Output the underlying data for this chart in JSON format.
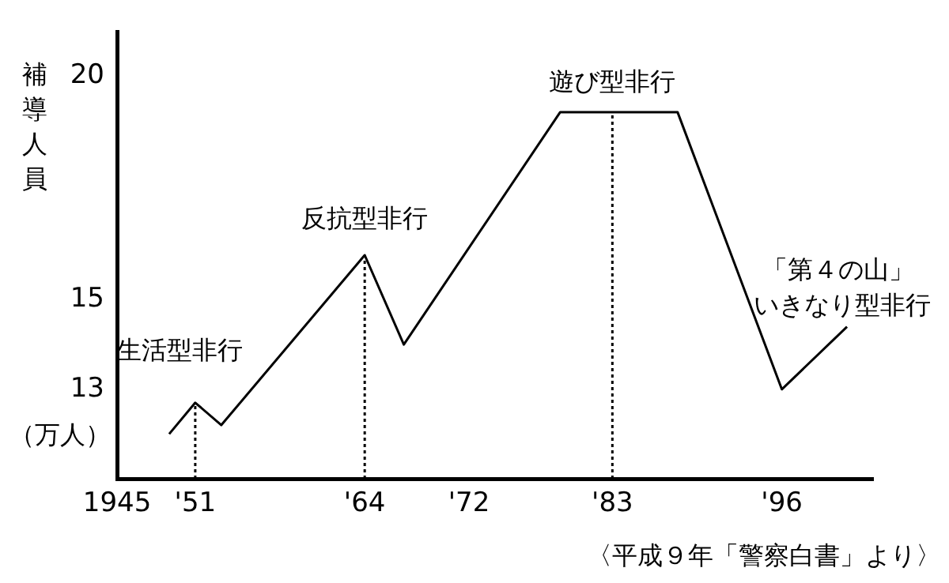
{
  "chart_data": {
    "type": "line",
    "ylabel": "補導人員",
    "x": [
      1949,
      1951,
      1953,
      1964,
      1967,
      1979,
      1988,
      1996,
      2001
    ],
    "series": [
      {
        "color": "#000000",
        "values": [
          12.0,
          12.7,
          12.2,
          16.0,
          14.0,
          19.2,
          19.2,
          13.0,
          14.4
        ]
      }
    ],
    "xlim": [
      1945,
      2003
    ],
    "xticks": [
      1945,
      {
        "value": 1951,
        "label": "'51"
      },
      {
        "value": 1964,
        "label": "'64"
      },
      {
        "value": 1972,
        "label": "'72"
      },
      {
        "value": 1983,
        "label": "'83"
      },
      {
        "value": 1996,
        "label": "'96"
      }
    ],
    "ylim": [
      11,
      21
    ],
    "yticks": [
      13,
      15,
      20
    ],
    "ref_lines": [
      {
        "axis": "x",
        "value": 1951,
        "line_style": "dotted"
      },
      {
        "axis": "x",
        "value": 1964,
        "line_style": "dotted"
      },
      {
        "axis": "x",
        "value": 1983,
        "line_style": "dotted"
      }
    ],
    "annotations": [
      {
        "text": "生活型非行",
        "x": 1951,
        "y": 12.7
      },
      {
        "text": "反抗型非行",
        "x": 1964,
        "y": 16.0
      },
      {
        "text": "遊び型非行",
        "x": 1983,
        "y": 19.2
      },
      "「第４の山」",
      {
        "text": "いきなり型非行",
        "x": 1996,
        "y": 13.0
      },
      "（万人）",
      "〈平成９年「警察白書」より〉"
    ],
    "grid": false,
    "legend": false,
    "marker": "none",
    "line_style": "solid"
  }
}
